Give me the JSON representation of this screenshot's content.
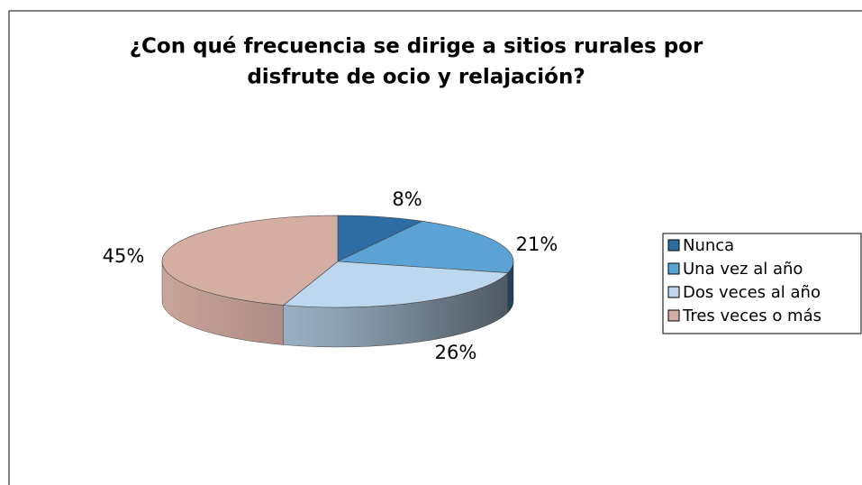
{
  "chart_data": {
    "type": "pie",
    "title": [
      "¿Con qué frecuencia se dirige a sitios rurales por",
      "disfrute de ocio y relajación?"
    ],
    "categories": [
      "Nunca",
      "Una vez al año",
      "Dos veces al año",
      "Tres veces o más"
    ],
    "values": [
      8,
      21,
      26,
      45
    ],
    "value_labels": [
      "8%",
      "21%",
      "26%",
      "45%"
    ],
    "colors": [
      "#2e6da4",
      "#5ba3d4",
      "#bdd7ee",
      "#d4ada3"
    ]
  }
}
